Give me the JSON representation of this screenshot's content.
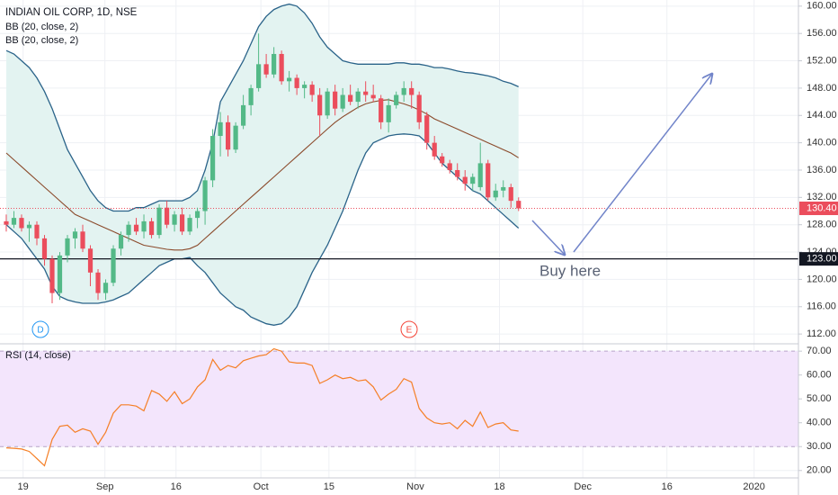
{
  "chart_data": [
    {
      "type": "candlestick",
      "title": "INDIAN OIL CORP, 1D, NSE",
      "up_color": "#53b987",
      "down_color": "#eb4d5c",
      "xlim": [
        -0.82,
        103.6
      ],
      "xticks": [
        {
          "value": 2.2,
          "label": "19"
        },
        {
          "value": 12.9,
          "label": "Sep"
        },
        {
          "value": 22.2,
          "label": "16"
        },
        {
          "value": 33.3,
          "label": "Oct"
        },
        {
          "value": 42.2,
          "label": "15"
        },
        {
          "value": 53.5,
          "label": "Nov"
        },
        {
          "value": 64.5,
          "label": "18"
        },
        {
          "value": 75.4,
          "label": "Dec"
        },
        {
          "value": 86.4,
          "label": "16"
        },
        {
          "value": 97.8,
          "label": "2020"
        }
      ],
      "ylim": [
        110.7,
        160.9
      ],
      "yticks": [
        {
          "value": 112,
          "label": "112.00"
        },
        {
          "value": 116,
          "label": "116.00"
        },
        {
          "value": 120,
          "label": "120.00"
        },
        {
          "value": 124,
          "label": "124.00"
        },
        {
          "value": 128,
          "label": "128.00"
        },
        {
          "value": 132,
          "label": "132.00"
        },
        {
          "value": 136,
          "label": "136.00"
        },
        {
          "value": 140,
          "label": "140.00"
        },
        {
          "value": 144,
          "label": "144.00"
        },
        {
          "value": 148,
          "label": "148.00"
        },
        {
          "value": 152,
          "label": "152.00"
        },
        {
          "value": 156,
          "label": "156.00"
        },
        {
          "value": 160,
          "label": "160.00"
        }
      ],
      "grid": true,
      "open": [
        128.5,
        128,
        129,
        127.5,
        128,
        126,
        123,
        118,
        123.5,
        126,
        127,
        124.5,
        121,
        118,
        119.5,
        124.5,
        126.5,
        128,
        127,
        128.5,
        126.5,
        130.5,
        128,
        129.5,
        127,
        129,
        130,
        134.5,
        141,
        143,
        139,
        142.5,
        145.5,
        148,
        151.5,
        150,
        153,
        149,
        149.5,
        148,
        148.5,
        147,
        144,
        147.5,
        145,
        147,
        146,
        147.5,
        147,
        146.5,
        143,
        145.5,
        147,
        148,
        147,
        144,
        140,
        138,
        137,
        136,
        135,
        134,
        133.5,
        137,
        132,
        133,
        133.5,
        131.5
      ],
      "high": [
        129.5,
        130,
        129.5,
        128.5,
        128.5,
        126.5,
        123.5,
        124,
        126.5,
        127.5,
        128,
        125,
        121.5,
        120,
        125,
        127,
        128.5,
        129,
        129.5,
        129,
        131,
        131.5,
        130,
        130.5,
        129.5,
        130.5,
        135,
        142,
        144.5,
        144,
        143,
        147,
        148.5,
        156,
        153,
        154,
        153.5,
        150.5,
        150,
        149,
        149,
        148,
        148,
        148.5,
        148,
        148.5,
        148,
        149,
        148.5,
        147,
        146.5,
        147.5,
        149,
        149,
        147.5,
        144.5,
        141,
        138.5,
        137.5,
        137,
        136,
        135.5,
        140,
        137.5,
        134,
        134.5,
        134,
        132
      ],
      "low": [
        127,
        127.5,
        127,
        125.5,
        125,
        122,
        116.5,
        117,
        122.5,
        124.5,
        124,
        119,
        117,
        117,
        119,
        123.5,
        125.5,
        126.5,
        126,
        126,
        126,
        127.5,
        127,
        126.5,
        126.5,
        127.5,
        128,
        133.5,
        138,
        138,
        138.5,
        142,
        144,
        147.5,
        149.5,
        149.5,
        148.5,
        147.5,
        147,
        146.5,
        146,
        141,
        143.5,
        144,
        144.5,
        145.5,
        145,
        146,
        146,
        142,
        141.5,
        145,
        146,
        145,
        142,
        139,
        137.5,
        136.5,
        135.5,
        134.5,
        133,
        133,
        133,
        131.5,
        131.5,
        132,
        130.5,
        130
      ],
      "close": [
        128,
        129,
        127.5,
        128,
        126,
        123,
        118,
        123.5,
        126,
        127,
        124.5,
        121,
        118,
        119.5,
        124.5,
        126.5,
        128,
        127,
        128.5,
        126.5,
        130.5,
        128,
        129.5,
        127,
        129,
        130,
        134.5,
        141,
        143,
        139,
        142.5,
        145.5,
        148,
        151.5,
        150,
        153,
        149,
        149.5,
        148,
        148.5,
        147,
        144,
        147.5,
        145,
        147,
        146,
        147.5,
        147,
        146.5,
        143,
        145.5,
        147,
        148,
        147,
        143,
        140,
        138,
        137,
        136,
        135,
        134,
        135,
        137,
        132,
        133,
        133.5,
        131.5,
        130.4
      ],
      "indicators": [
        {
          "name": "BB (20, close, 2)",
          "color": "#2a6389",
          "basis_color": "#8b4a2b",
          "fill": "#e3f3f1",
          "upper": [
            153.5,
            153,
            152,
            151,
            149.5,
            147.5,
            145,
            142,
            139,
            137,
            135,
            133,
            131.5,
            130.5,
            130,
            130,
            130,
            130.5,
            130.5,
            131,
            131.5,
            131.5,
            131.5,
            131.5,
            132,
            133,
            136,
            140,
            146,
            148,
            150,
            152,
            154.5,
            157,
            158.5,
            159.5,
            160,
            160.3,
            160,
            159,
            157.5,
            155.5,
            154,
            153,
            152,
            151.7,
            151.5,
            151.5,
            151.5,
            151.5,
            151.5,
            151.7,
            151.7,
            151.5,
            151.5,
            151.3,
            151,
            151,
            150.8,
            150.5,
            150.3,
            150.2,
            150,
            149.8,
            149.5,
            149,
            148.7,
            148.2
          ],
          "basis": [
            138.5,
            137.5,
            136.5,
            135.5,
            134.5,
            133.5,
            132.5,
            131.5,
            130.5,
            129.5,
            129,
            128.5,
            128,
            127.5,
            127,
            126.5,
            126,
            125.5,
            125,
            124.8,
            124.6,
            124.4,
            124.3,
            124.3,
            124.5,
            125,
            126,
            127,
            128,
            129,
            130,
            131,
            132,
            133,
            134,
            135,
            136,
            137,
            138,
            139,
            140,
            141,
            142,
            143,
            143.8,
            144.5,
            145.2,
            145.7,
            146,
            146.2,
            146.3,
            146,
            145.7,
            145.3,
            144.8,
            144.2,
            143.5,
            143,
            142.5,
            142,
            141.5,
            141,
            140.5,
            140,
            139.5,
            139,
            138.5,
            137.8
          ],
          "lower": [
            128,
            127,
            126,
            124.5,
            123,
            121.5,
            119,
            117.5,
            117,
            116.7,
            116.5,
            116.5,
            116.5,
            116.7,
            117,
            117.5,
            118,
            119,
            120,
            121,
            122,
            122.5,
            123,
            123,
            123.2,
            122,
            121,
            119.5,
            118,
            117,
            116,
            115.5,
            114.5,
            114,
            113.5,
            113.3,
            113.5,
            114.5,
            116,
            118.5,
            121,
            123,
            125,
            127.5,
            130,
            133,
            136,
            138.5,
            140,
            140.5,
            141,
            141.2,
            141.3,
            141.2,
            141,
            140,
            138.5,
            137,
            136,
            135,
            134,
            133,
            132.5,
            131.5,
            130.5,
            129.5,
            128.5,
            127.5
          ]
        },
        {
          "name": "BB (20, close, 2)"
        }
      ],
      "last_price": {
        "value": 130.4,
        "label": "130.40",
        "color": "#eb4d5c"
      },
      "level": {
        "value": 123,
        "label": "123.00",
        "color": "#131722"
      },
      "annotation": "Buy here",
      "events": [
        {
          "label": "D",
          "color": "#2196f3"
        },
        {
          "label": "E",
          "color": "#f44336"
        }
      ]
    },
    {
      "type": "line",
      "title": "RSI (14, close)",
      "xlim": [
        -0.82,
        103.6
      ],
      "ylim": [
        16.9,
        72.7
      ],
      "yticks": [
        {
          "value": 20,
          "label": "20.00"
        },
        {
          "value": 30,
          "label": "30.00"
        },
        {
          "value": 40,
          "label": "40.00"
        },
        {
          "value": 50,
          "label": "50.00"
        },
        {
          "value": 60,
          "label": "60.00"
        },
        {
          "value": 70,
          "label": "70.00"
        }
      ],
      "band": [
        30,
        70
      ],
      "band_color": "#f3e5fc",
      "series": [
        {
          "color": "#f57f26",
          "values": [
            29.5,
            29.3,
            29,
            28,
            25,
            22,
            33,
            38.5,
            39,
            36,
            37.5,
            36.5,
            31,
            36,
            44,
            47.5,
            47.5,
            47,
            45,
            53.5,
            52,
            49,
            53,
            48,
            50,
            55,
            58,
            66.5,
            62,
            64,
            63,
            66,
            67,
            68,
            68.5,
            71,
            70,
            65.5,
            65,
            65,
            64,
            56.5,
            58,
            60,
            58.5,
            59,
            57.5,
            58,
            55,
            49.5,
            52,
            54,
            58.5,
            57,
            46,
            42,
            40,
            39.5,
            40,
            37.5,
            41,
            38.5,
            44.5,
            38,
            39.5,
            40,
            37,
            36.5
          ]
        }
      ]
    }
  ]
}
